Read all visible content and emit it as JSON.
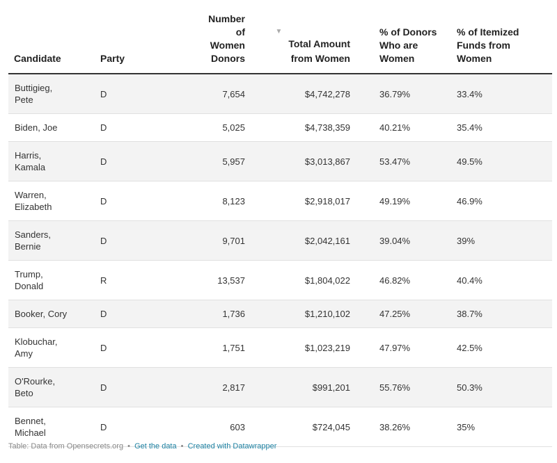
{
  "chart_data": {
    "type": "table",
    "columns": [
      {
        "key": "candidate",
        "label": "Candidate",
        "align": "left"
      },
      {
        "key": "party",
        "label": "Party",
        "align": "left"
      },
      {
        "key": "donors",
        "label": "Number of Women Donors",
        "align": "right"
      },
      {
        "key": "amount",
        "label": "Total Amount from Women",
        "align": "right",
        "sorted": "desc",
        "sort_icon": "▼"
      },
      {
        "key": "pct_donors",
        "label": "% of Donors Who are Women",
        "align": "left"
      },
      {
        "key": "pct_funds",
        "label": "% of Itemized Funds from Women",
        "align": "left"
      }
    ],
    "rows": [
      {
        "candidate": "Buttigieg, Pete",
        "party": "D",
        "donors": "7,654",
        "amount": "$4,742,278",
        "pct_donors": "36.79%",
        "pct_funds": "33.4%"
      },
      {
        "candidate": "Biden, Joe",
        "party": "D",
        "donors": "5,025",
        "amount": "$4,738,359",
        "pct_donors": "40.21%",
        "pct_funds": "35.4%"
      },
      {
        "candidate": "Harris, Kamala",
        "party": "D",
        "donors": "5,957",
        "amount": "$3,013,867",
        "pct_donors": "53.47%",
        "pct_funds": "49.5%"
      },
      {
        "candidate": "Warren, Elizabeth",
        "party": "D",
        "donors": "8,123",
        "amount": "$2,918,017",
        "pct_donors": "49.19%",
        "pct_funds": "46.9%"
      },
      {
        "candidate": "Sanders, Bernie",
        "party": "D",
        "donors": "9,701",
        "amount": "$2,042,161",
        "pct_donors": "39.04%",
        "pct_funds": "39%"
      },
      {
        "candidate": "Trump, Donald",
        "party": "R",
        "donors": "13,537",
        "amount": "$1,804,022",
        "pct_donors": "46.82%",
        "pct_funds": "40.4%"
      },
      {
        "candidate": "Booker, Cory",
        "party": "D",
        "donors": "1,736",
        "amount": "$1,210,102",
        "pct_donors": "47.25%",
        "pct_funds": "38.7%"
      },
      {
        "candidate": "Klobuchar, Amy",
        "party": "D",
        "donors": "1,751",
        "amount": "$1,023,219",
        "pct_donors": "47.97%",
        "pct_funds": "42.5%"
      },
      {
        "candidate": "O'Rourke, Beto",
        "party": "D",
        "donors": "2,817",
        "amount": "$991,201",
        "pct_donors": "55.76%",
        "pct_funds": "50.3%"
      },
      {
        "candidate": "Bennet, Michael",
        "party": "D",
        "donors": "603",
        "amount": "$724,045",
        "pct_donors": "38.26%",
        "pct_funds": "35%"
      }
    ]
  },
  "footer": {
    "source": "Table: Data from Opensecrets.org",
    "separator": "•",
    "get_data": "Get the data",
    "created_with": "Created with Datawrapper"
  }
}
